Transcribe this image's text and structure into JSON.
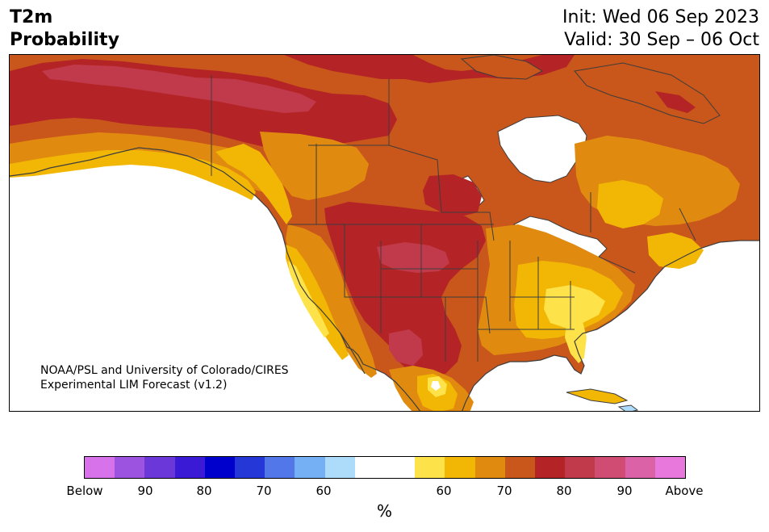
{
  "header": {
    "variable": "T2m",
    "product": "Probability",
    "init": "Init: Wed 06 Sep 2023",
    "valid": "Valid: 30 Sep – 06 Oct"
  },
  "map": {
    "region": "North America",
    "credit_line1": "NOAA/PSL and University of Colorado/CIRES",
    "credit_line2": "Experimental LIM Forecast (v1.2)"
  },
  "colorbar": {
    "colors": [
      "#d872ea",
      "#9b53e0",
      "#6b37d8",
      "#3a1ad5",
      "#0000cc",
      "#2637d8",
      "#5177e9",
      "#74b0f3",
      "#acdcfa",
      "#ffffff",
      "#ffffff",
      "#fde24a",
      "#f2b705",
      "#e08b10",
      "#c9561a",
      "#b42426",
      "#c13a4b",
      "#d04c73",
      "#db62a7",
      "#e878dc"
    ],
    "ticks": [
      "Below",
      "90",
      "80",
      "70",
      "60",
      "60",
      "70",
      "80",
      "90",
      "Above"
    ],
    "unit": "%"
  },
  "palette": {
    "light_yellow": "#fde24a",
    "yellow": "#f2b705",
    "orange": "#e08b10",
    "dark_orange": "#c9561a",
    "red": "#b42426",
    "rose": "#c13a4b",
    "pale": "#fff2a0",
    "water": "#ffffff",
    "outline": "#3d3d3d"
  }
}
